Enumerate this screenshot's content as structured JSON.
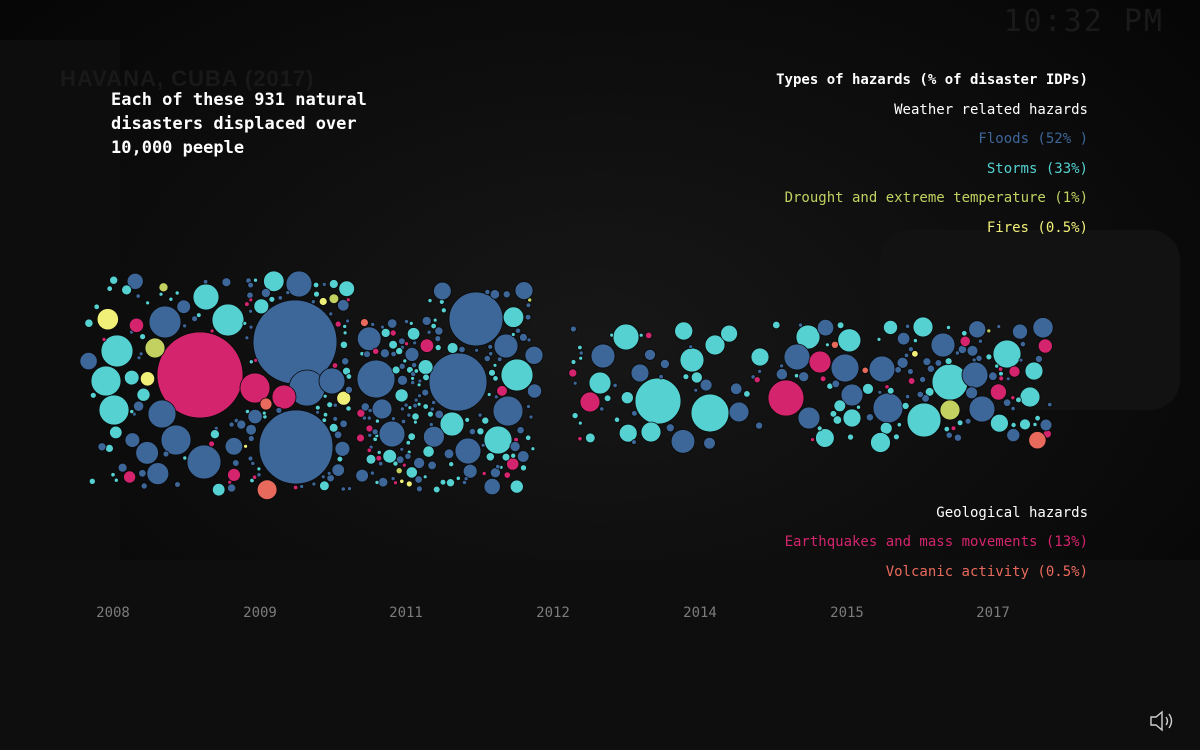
{
  "clock": "10:32 PM",
  "watermark": "HAVANA, CUBA (2017)",
  "headline": "Each of these 931 natural disasters displaced over 10,000 peeple",
  "legend": {
    "title": "Types of hazards (% of disaster IDPs)",
    "weather_title": "Weather related hazards",
    "floods": "Floods (52% )",
    "storms": "Storms (33%)",
    "drought": "Drought and extreme temperature (1%)",
    "fires": "Fires (0.5%)",
    "geo_title": "Geological hazards",
    "earthquakes": "Earthquakes and mass movements (13%)",
    "volcanic": "Volcanic activity (0.5%)"
  },
  "colors": {
    "floods": "#3d6699",
    "storms": "#55d1d1",
    "drought": "#c2d160",
    "fires": "#f0ef78",
    "earthquakes": "#d4246e",
    "volcanic": "#e86a5c",
    "title": "#ffffff",
    "year_label": "#7b7b7b"
  },
  "chart_data": {
    "type": "scatter",
    "title": "Each of these 931 natural disasters displaced over 10,000 peeple",
    "x_ticks": [
      "2008",
      "2009",
      "2011",
      "2012",
      "2014",
      "2015",
      "2017"
    ],
    "series": [
      {
        "name": "Floods (52% )",
        "key": "floods"
      },
      {
        "name": "Storms (33%)",
        "key": "storms"
      },
      {
        "name": "Drought and extreme temperature (1%)",
        "key": "drought"
      },
      {
        "name": "Fires (0.5%)",
        "key": "fires"
      },
      {
        "name": "Earthquakes and mass movements (13%)",
        "key": "earthquakes"
      },
      {
        "name": "Volcanic activity (0.5%)",
        "key": "volcanic"
      }
    ],
    "total_events": 931
  },
  "sound_icon": "speaker-icon"
}
